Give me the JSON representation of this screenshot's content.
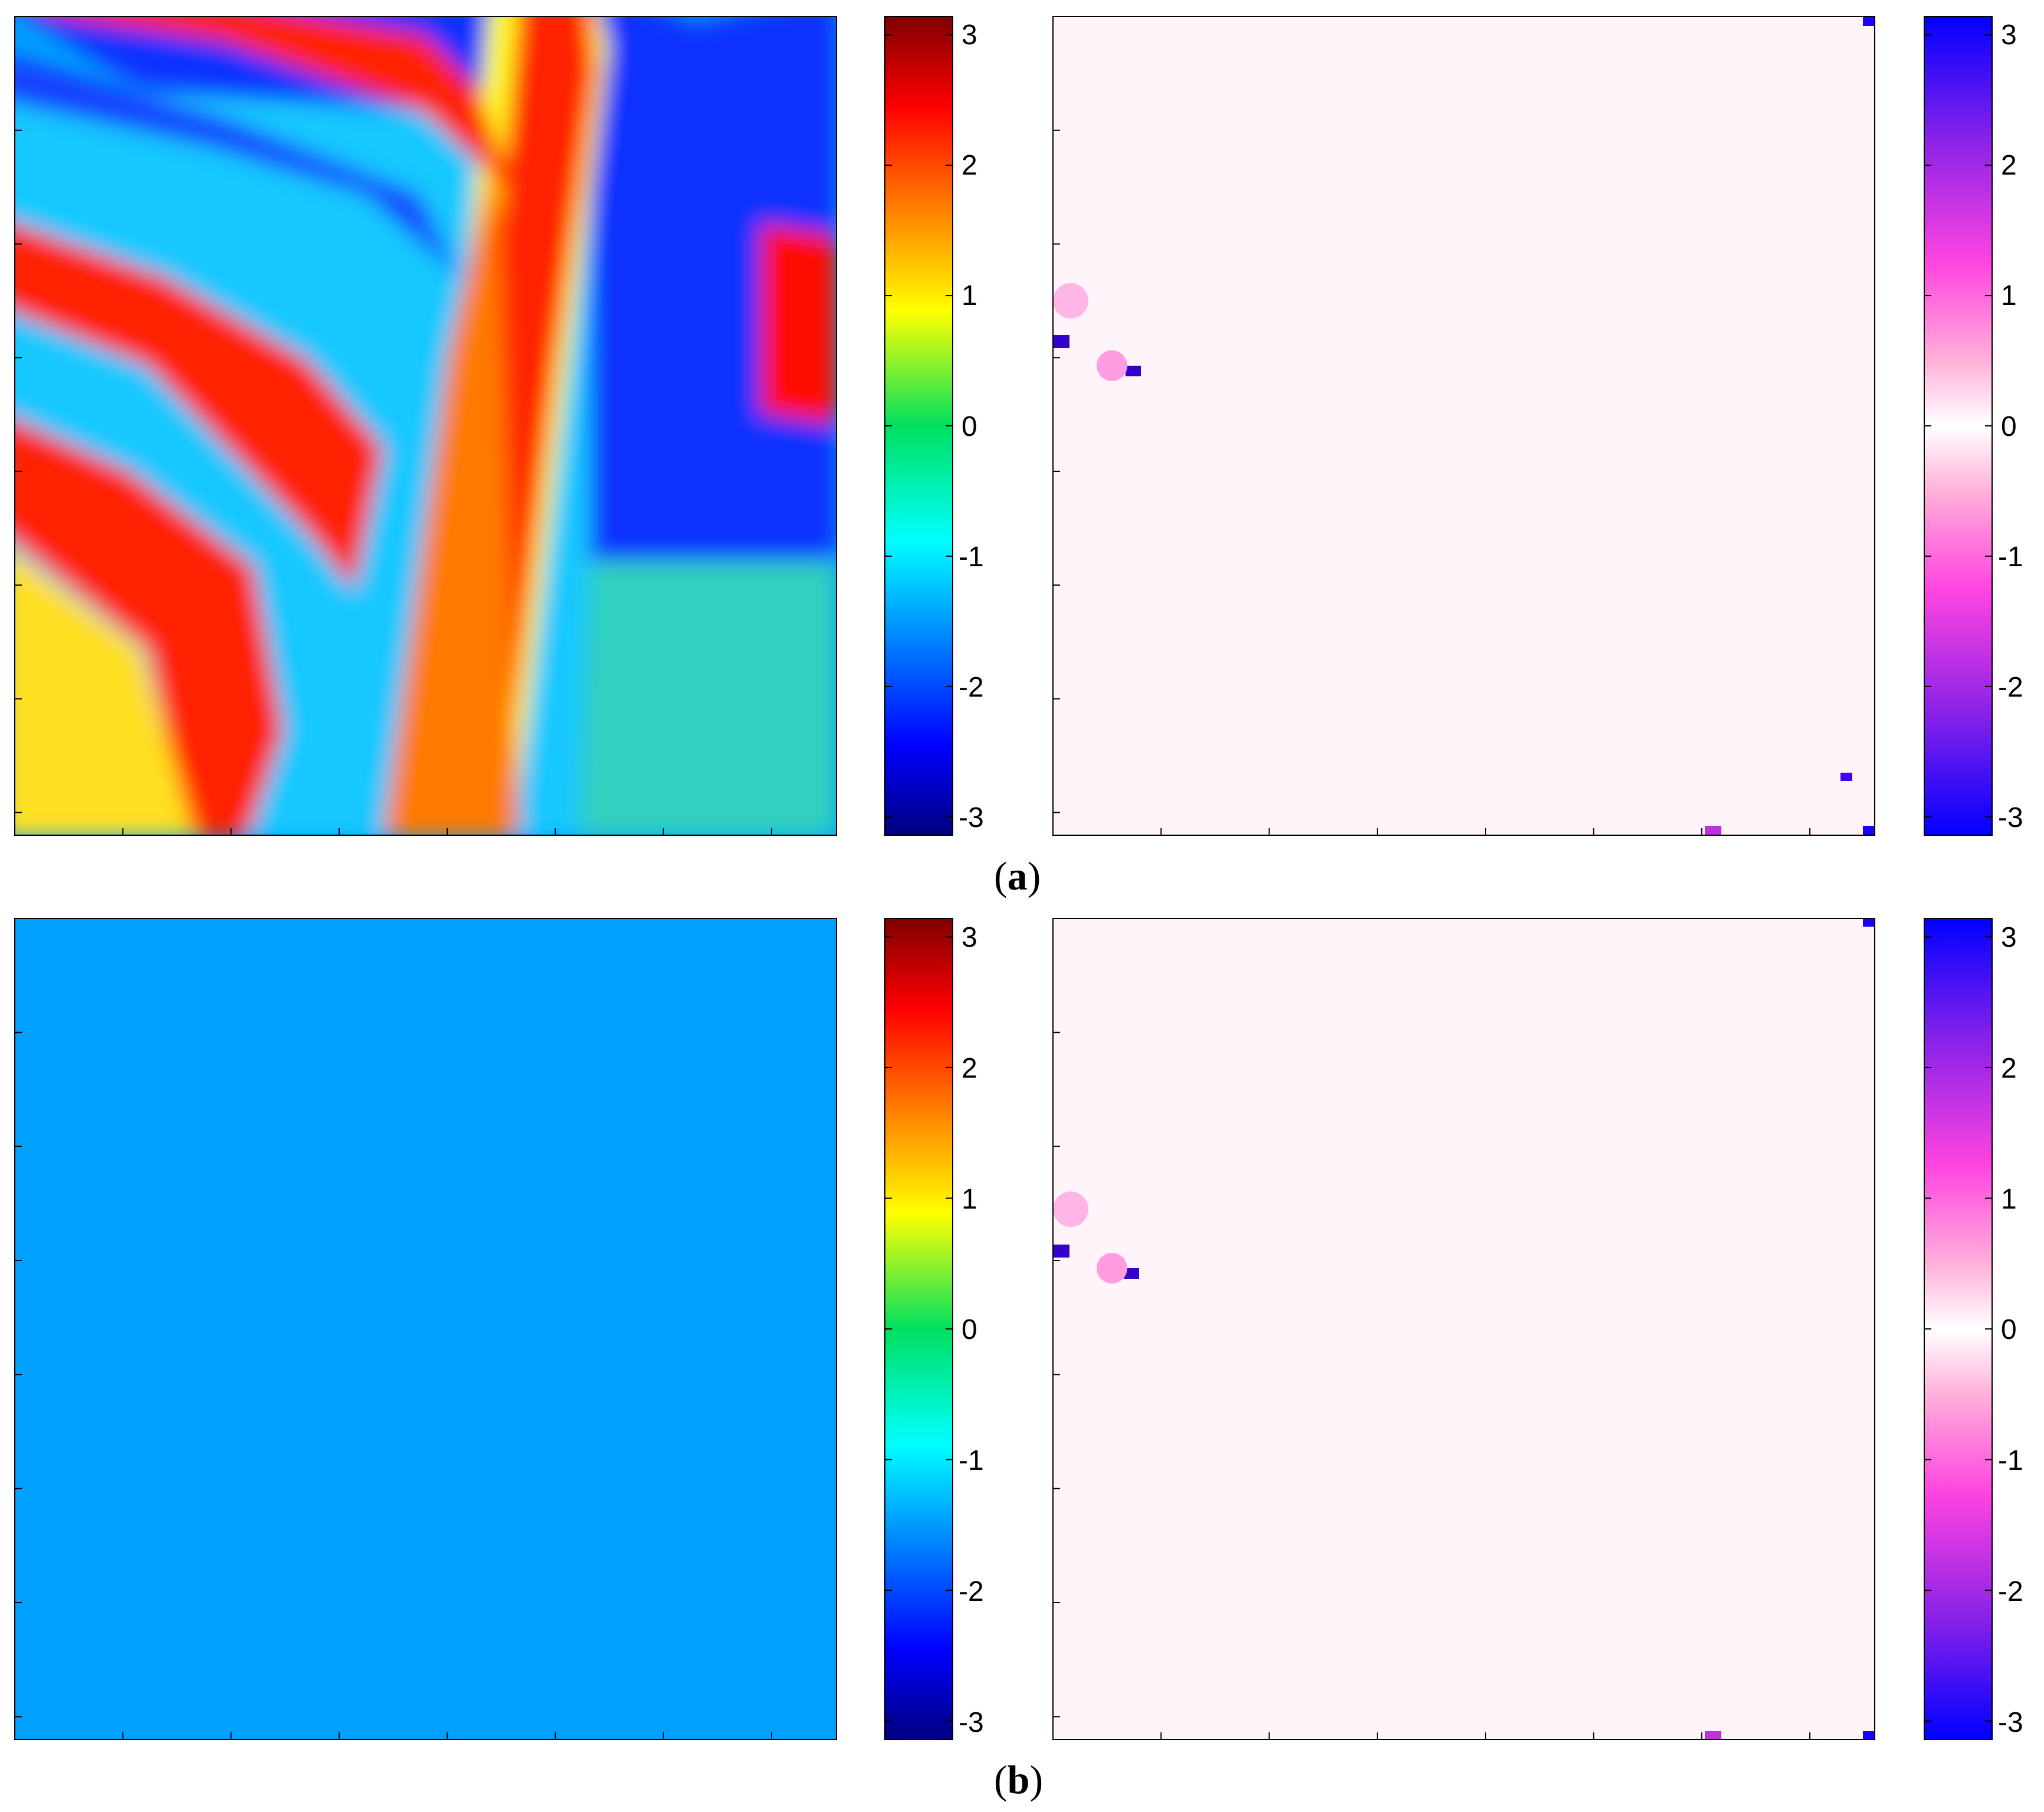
{
  "chart_data": [
    {
      "type": "heatmap",
      "panel": "a",
      "image": "interferometric phase map",
      "colormap": "jet",
      "clim": [
        -3.14159,
        3.14159
      ],
      "colorbar_ticks": [
        3,
        2,
        1,
        0,
        -1,
        -2,
        -3
      ],
      "xlabel": "",
      "ylabel": "",
      "title": ""
    },
    {
      "type": "heatmap",
      "panel": "a",
      "image": "phase difference map",
      "colormap": "white-pink-magenta-blue",
      "clim": [
        -3.14159,
        3.14159
      ],
      "colorbar_ticks": [
        3,
        2,
        1,
        0,
        -1,
        -2,
        -3
      ],
      "xlabel": "",
      "ylabel": "",
      "title": ""
    },
    {
      "type": "heatmap",
      "panel": "b",
      "image": "interferometric phase map",
      "colormap": "jet",
      "clim": [
        -3.14159,
        3.14159
      ],
      "colorbar_ticks": [
        3,
        2,
        1,
        0,
        -1,
        -2,
        -3
      ],
      "xlabel": "",
      "ylabel": "",
      "title": ""
    },
    {
      "type": "heatmap",
      "panel": "b",
      "image": "phase difference map",
      "colormap": "white-pink-magenta-blue",
      "clim": [
        -3.14159,
        3.14159
      ],
      "colorbar_ticks": [
        3,
        2,
        1,
        0,
        -1,
        -2,
        -3
      ],
      "xlabel": "",
      "ylabel": "",
      "title": ""
    }
  ],
  "colorbar_labels": {
    "a_phase": [
      "3",
      "2",
      "1",
      "0",
      "-1",
      "-2",
      "-3"
    ],
    "a_diff": [
      "3",
      "2",
      "1",
      "0",
      "-1",
      "-2",
      "-3"
    ],
    "b_phase": [
      "3",
      "2",
      "1",
      "0",
      "-1",
      "-2",
      "-3"
    ],
    "b_diff": [
      "3",
      "2",
      "1",
      "0",
      "-1",
      "-2",
      "-3"
    ]
  },
  "panel_labels": {
    "a_open": "(",
    "a_letter": "a",
    "a_close": ")",
    "b_open": "(",
    "b_letter": "b",
    "b_close": ")"
  },
  "colors": {
    "jet": [
      "#00007f",
      "#0000ff",
      "#007fff",
      "#00ffff",
      "#7fff7f",
      "#ffff00",
      "#ff7f00",
      "#ff0000",
      "#7f0000"
    ],
    "diff": [
      "#0000ff",
      "#7a22e6",
      "#ff44e0",
      "#ff9ed8",
      "#ffd7ea",
      "#ffffff",
      "#ffd7ea",
      "#ff9ed8",
      "#ff44e0",
      "#7a22e6",
      "#0000ff"
    ]
  }
}
